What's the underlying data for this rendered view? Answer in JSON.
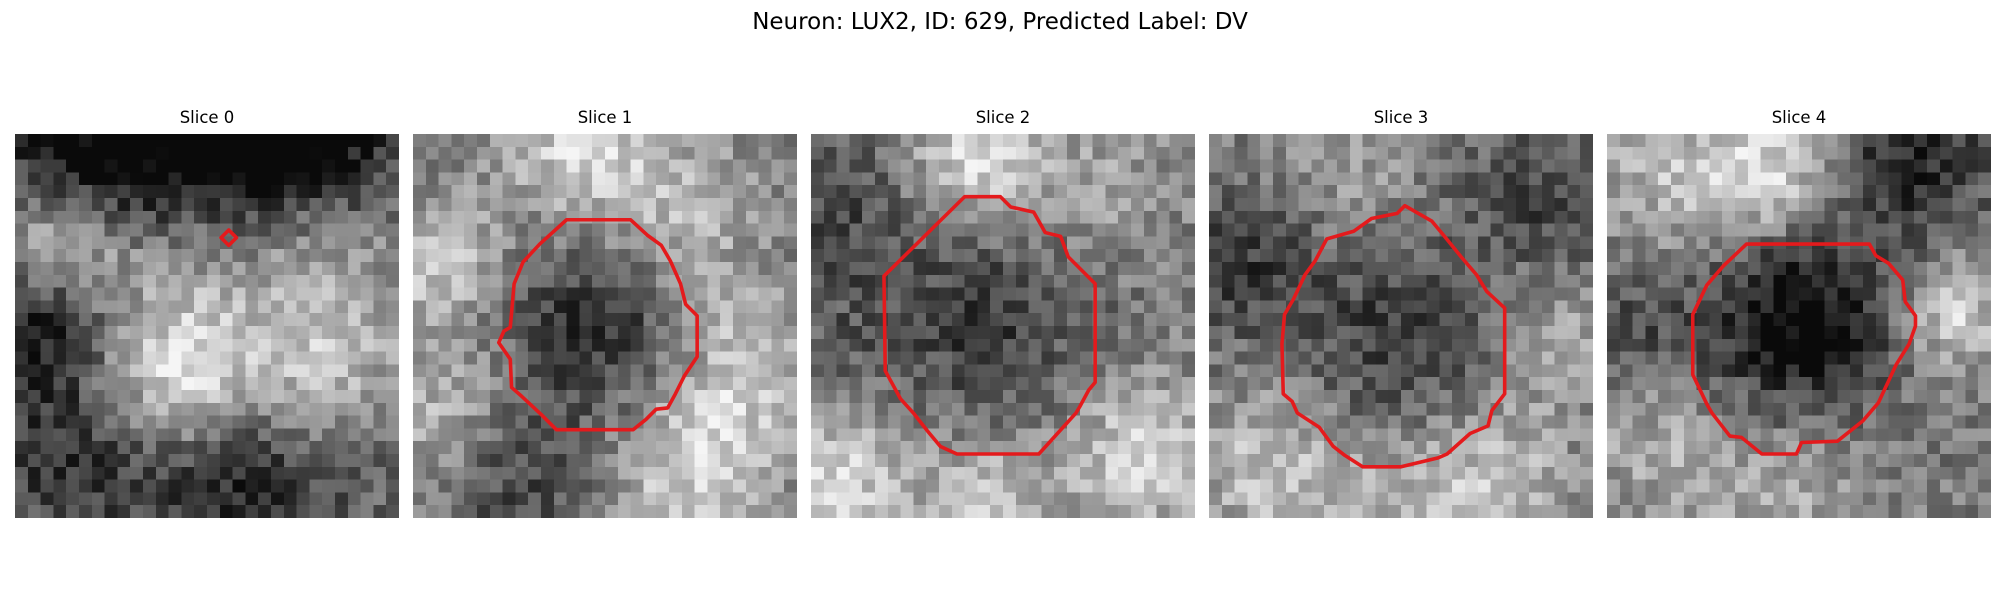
{
  "figure": {
    "title": "Neuron: LUX2, ID: 629, Predicted Label: DV"
  },
  "grid_size": 30,
  "colors": {
    "contour": "#e41a1c",
    "pixel_dark": "#0d0d0d",
    "pixel_light": "#f2f2f2"
  },
  "panels": [
    {
      "title": "Slice 0",
      "contour": [
        [
          16.7,
          7.5
        ],
        [
          17.3,
          8.1
        ],
        [
          16.7,
          8.7
        ],
        [
          16.1,
          8.1
        ]
      ]
    },
    {
      "title": "Slice 1",
      "contour": [
        [
          12.0,
          6.7
        ],
        [
          17.0,
          6.7
        ],
        [
          18.3,
          7.9
        ],
        [
          19.4,
          8.7
        ],
        [
          20.1,
          9.9
        ],
        [
          20.9,
          11.7
        ],
        [
          21.3,
          13.3
        ],
        [
          22.2,
          14.2
        ],
        [
          22.2,
          17.4
        ],
        [
          21.2,
          18.9
        ],
        [
          20.5,
          20.3
        ],
        [
          19.9,
          21.4
        ],
        [
          19.0,
          21.5
        ],
        [
          18.2,
          22.3
        ],
        [
          17.2,
          23.1
        ],
        [
          11.2,
          23.1
        ],
        [
          10.0,
          21.9
        ],
        [
          8.5,
          20.5
        ],
        [
          7.7,
          19.8
        ],
        [
          7.6,
          17.6
        ],
        [
          6.7,
          16.3
        ],
        [
          7.1,
          15.4
        ],
        [
          7.6,
          15.1
        ],
        [
          7.9,
          11.7
        ],
        [
          8.6,
          10.0
        ],
        [
          9.9,
          8.6
        ]
      ],
      "text_values": []
    },
    {
      "title": "Slice 2",
      "contour": [
        [
          12.0,
          4.9
        ],
        [
          14.8,
          4.9
        ],
        [
          15.6,
          5.7
        ],
        [
          17.4,
          6.1
        ],
        [
          18.3,
          7.7
        ],
        [
          19.5,
          8.0
        ],
        [
          20.1,
          9.6
        ],
        [
          22.2,
          11.7
        ],
        [
          22.2,
          19.4
        ],
        [
          21.7,
          20.0
        ],
        [
          21.0,
          21.3
        ],
        [
          20.7,
          21.8
        ],
        [
          17.8,
          25.0
        ],
        [
          11.4,
          25.0
        ],
        [
          10.1,
          24.4
        ],
        [
          9.1,
          23.2
        ],
        [
          8.0,
          21.8
        ],
        [
          7.0,
          20.7
        ],
        [
          5.8,
          18.5
        ],
        [
          5.7,
          11.1
        ]
      ]
    },
    {
      "title": "Slice 3",
      "contour": [
        [
          15.3,
          5.6
        ],
        [
          16.0,
          6.0
        ],
        [
          17.4,
          6.8
        ],
        [
          18.4,
          8.0
        ],
        [
          19.7,
          9.6
        ],
        [
          20.9,
          11.0
        ],
        [
          21.7,
          12.3
        ],
        [
          23.1,
          13.6
        ],
        [
          23.1,
          20.3
        ],
        [
          22.1,
          21.6
        ],
        [
          21.8,
          22.8
        ],
        [
          20.4,
          23.4
        ],
        [
          18.6,
          25.0
        ],
        [
          17.9,
          25.3
        ],
        [
          15.0,
          26.0
        ],
        [
          12.0,
          26.0
        ],
        [
          10.6,
          25.1
        ],
        [
          9.7,
          24.4
        ],
        [
          8.6,
          22.9
        ],
        [
          6.9,
          21.8
        ],
        [
          6.5,
          20.9
        ],
        [
          5.8,
          20.3
        ],
        [
          5.7,
          16.4
        ],
        [
          5.9,
          14.1
        ],
        [
          6.6,
          12.9
        ],
        [
          7.5,
          11.0
        ],
        [
          8.3,
          9.9
        ],
        [
          9.2,
          8.2
        ],
        [
          11.3,
          7.6
        ],
        [
          12.7,
          6.6
        ],
        [
          14.7,
          6.2
        ]
      ]
    },
    {
      "title": "Slice 4",
      "contour": [
        [
          10.9,
          8.6
        ],
        [
          20.5,
          8.6
        ],
        [
          21.0,
          9.5
        ],
        [
          22.0,
          10.1
        ],
        [
          23.1,
          11.4
        ],
        [
          23.3,
          13.1
        ],
        [
          24.1,
          14.2
        ],
        [
          24.1,
          15.0
        ],
        [
          23.6,
          16.4
        ],
        [
          22.6,
          18.0
        ],
        [
          21.2,
          21.0
        ],
        [
          20.0,
          22.4
        ],
        [
          18.0,
          24.0
        ],
        [
          15.2,
          24.1
        ],
        [
          14.8,
          25.0
        ],
        [
          12.1,
          25.0
        ],
        [
          10.5,
          23.7
        ],
        [
          9.6,
          23.6
        ],
        [
          8.2,
          21.8
        ],
        [
          7.8,
          21.1
        ],
        [
          6.7,
          18.8
        ],
        [
          6.7,
          14.1
        ],
        [
          7.8,
          11.8
        ],
        [
          9.1,
          10.3
        ]
      ]
    }
  ]
}
